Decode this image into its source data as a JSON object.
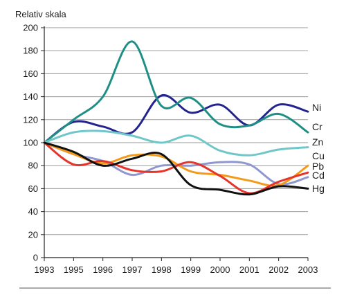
{
  "chart_data": {
    "type": "line",
    "title": "",
    "ylabel": "Relativ skala",
    "xlabel": "",
    "x": [
      "1993",
      "1995",
      "1996",
      "1997",
      "1998",
      "1999",
      "2000",
      "2001",
      "2002",
      "2003"
    ],
    "ylim": [
      0,
      200
    ],
    "yticks": [
      0,
      20,
      40,
      60,
      80,
      100,
      120,
      140,
      160,
      180,
      200
    ],
    "grid": "horizontal",
    "legend": "inline labels at right end of lines",
    "series": [
      {
        "name": "Ni",
        "color": "#23238f",
        "values": [
          100,
          118,
          114,
          109,
          141,
          126,
          133,
          115,
          133,
          127
        ]
      },
      {
        "name": "Cr",
        "color": "#1f8f86",
        "values": [
          100,
          120,
          140,
          188,
          132,
          139,
          116,
          115,
          125,
          109
        ]
      },
      {
        "name": "Zn",
        "color": "#6fc7c9",
        "values": [
          100,
          109,
          110,
          106,
          100,
          106,
          93,
          89,
          94,
          96
        ]
      },
      {
        "name": "Cu",
        "color": "#8e97cf",
        "values": [
          100,
          90,
          84,
          72,
          80,
          80,
          83,
          81,
          64,
          70
        ]
      },
      {
        "name": "Pb",
        "color": "#f49a18",
        "values": [
          100,
          90,
          82,
          89,
          88,
          75,
          72,
          67,
          63,
          80
        ]
      },
      {
        "name": "Cd",
        "color": "#e5352a",
        "values": [
          100,
          81,
          84,
          76,
          75,
          83,
          71,
          56,
          66,
          74
        ]
      },
      {
        "name": "Hg",
        "color": "#111111",
        "values": [
          100,
          92,
          80,
          86,
          90,
          63,
          59,
          55,
          62,
          60
        ]
      }
    ]
  }
}
